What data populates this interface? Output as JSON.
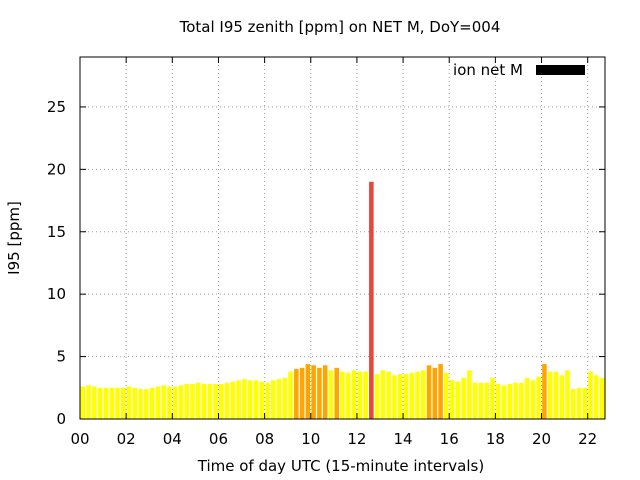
{
  "chart_data": {
    "type": "bar",
    "title": "Total I95 zenith [ppm] on NET M, DoY=004",
    "xlabel": "Time of day UTC (15-minute intervals)",
    "ylabel": "I95 [ppm]",
    "xlim": [
      0,
      22.75
    ],
    "ylim": [
      0,
      29
    ],
    "xticks": [
      "00",
      "02",
      "04",
      "06",
      "08",
      "10",
      "12",
      "14",
      "16",
      "18",
      "20",
      "22"
    ],
    "yticks": [
      "0",
      "5",
      "10",
      "15",
      "20",
      "25"
    ],
    "grid": true,
    "legend": {
      "label": "ion net M",
      "color": "#000000",
      "placement": "top-right"
    },
    "colors": {
      "low": "#ffff00",
      "mid": "#ffa500",
      "high": "#e8473b"
    },
    "interval_hours": 0.25,
    "values": [
      2.6,
      2.7,
      2.6,
      2.5,
      2.5,
      2.5,
      2.5,
      2.5,
      2.6,
      2.5,
      2.4,
      2.4,
      2.5,
      2.6,
      2.7,
      2.6,
      2.6,
      2.7,
      2.8,
      2.8,
      2.9,
      2.8,
      2.8,
      2.8,
      2.8,
      2.9,
      3.0,
      3.1,
      3.2,
      3.1,
      3.1,
      3.0,
      2.9,
      3.1,
      3.2,
      3.3,
      3.8,
      4.0,
      4.1,
      4.4,
      4.3,
      4.1,
      4.3,
      3.9,
      4.1,
      3.8,
      3.7,
      3.9,
      3.8,
      3.8,
      19.0,
      3.6,
      3.9,
      3.8,
      3.5,
      3.6,
      3.6,
      3.7,
      3.8,
      3.9,
      4.3,
      4.1,
      4.4,
      3.7,
      3.1,
      3.0,
      3.3,
      3.9,
      2.9,
      2.9,
      2.9,
      3.3,
      2.8,
      2.7,
      2.8,
      2.9,
      2.9,
      3.3,
      3.1,
      3.4,
      4.4,
      3.8,
      3.8,
      3.5,
      3.9,
      2.4,
      2.5,
      2.5,
      3.8,
      3.5,
      3.3
    ]
  }
}
